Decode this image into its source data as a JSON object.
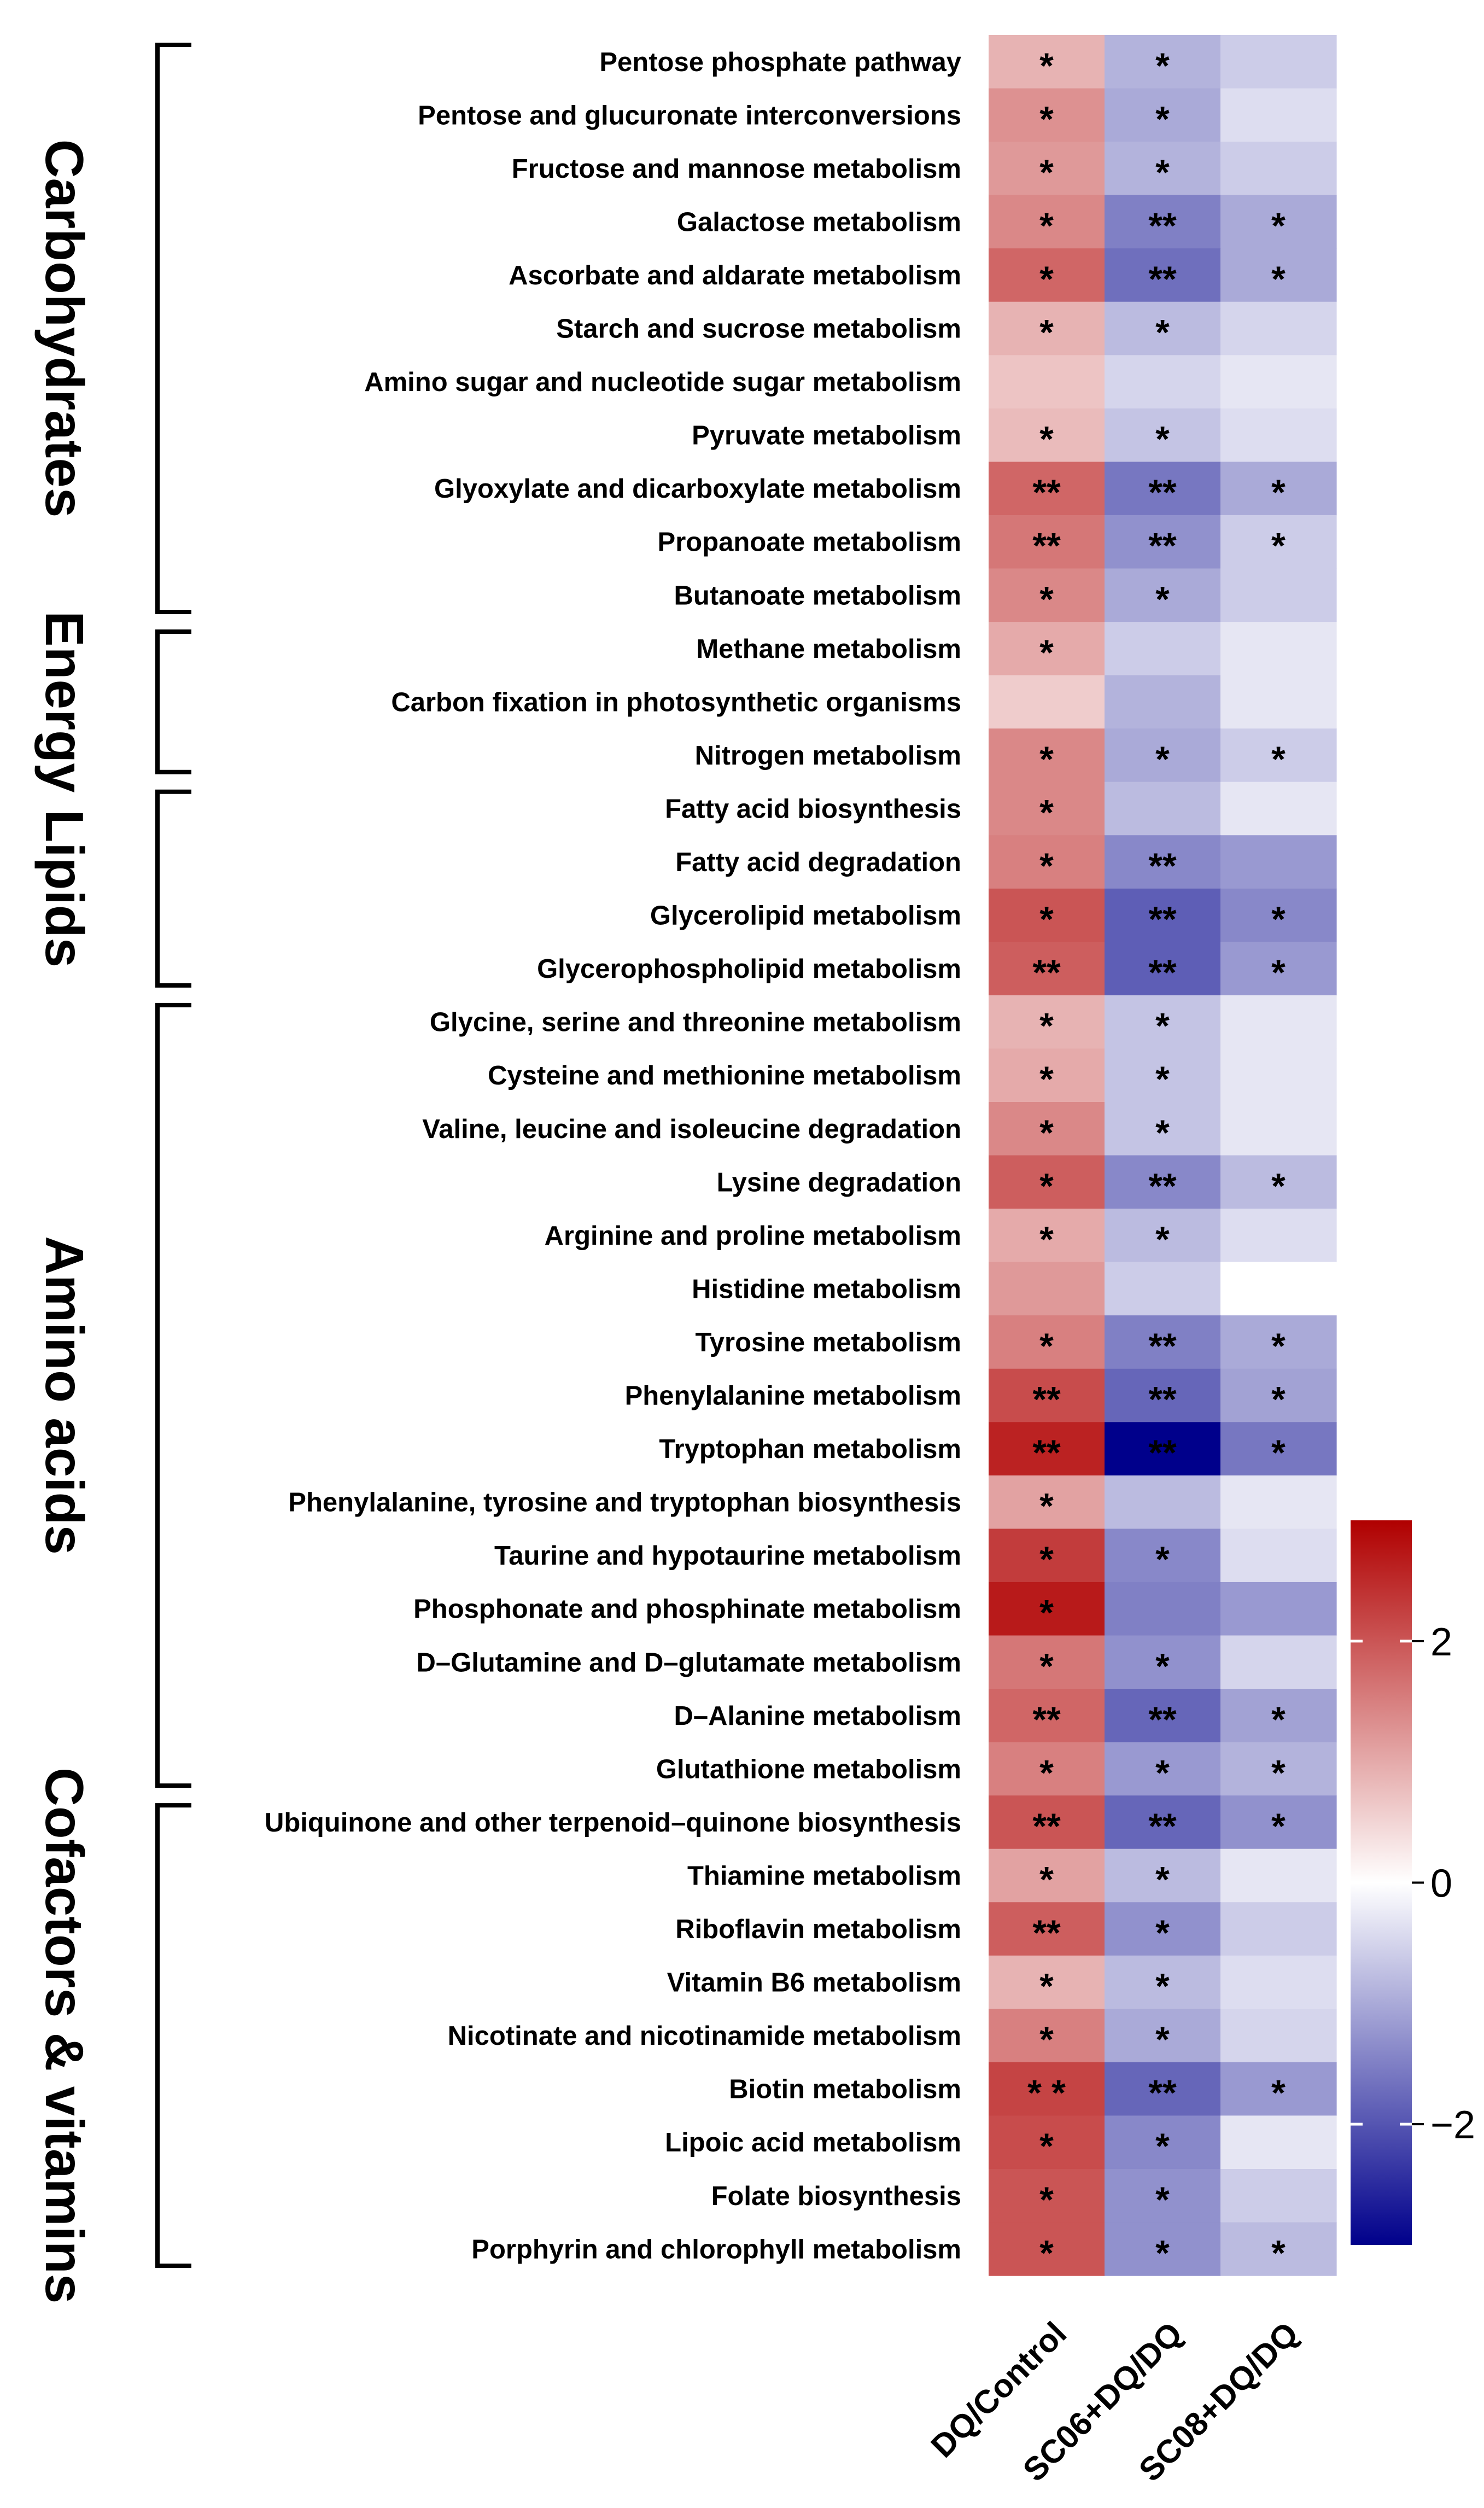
{
  "chart_data": {
    "type": "heatmap",
    "columns": [
      "DQ/Control",
      "SC06+DQ/DQ",
      "SC08+DQ/DQ"
    ],
    "rows": [
      {
        "label": "Pentose phosphate pathway",
        "values": [
          0.9,
          -0.9,
          -0.6
        ],
        "sig": [
          "*",
          "*",
          ""
        ]
      },
      {
        "label": "Pentose and glucuronate interconversions",
        "values": [
          1.3,
          -1.0,
          -0.4
        ],
        "sig": [
          "*",
          "*",
          ""
        ]
      },
      {
        "label": "Fructose and mannose metabolism",
        "values": [
          1.2,
          -0.9,
          -0.6
        ],
        "sig": [
          "*",
          "*",
          ""
        ]
      },
      {
        "label": "Galactose metabolism",
        "values": [
          1.4,
          -1.5,
          -1.0
        ],
        "sig": [
          "*",
          "**",
          "*"
        ]
      },
      {
        "label": "Ascorbate and aldarate metabolism",
        "values": [
          1.8,
          -1.7,
          -1.0
        ],
        "sig": [
          "*",
          "**",
          "*"
        ]
      },
      {
        "label": "Starch and sucrose metabolism",
        "values": [
          0.9,
          -0.8,
          -0.5
        ],
        "sig": [
          "*",
          "*",
          ""
        ]
      },
      {
        "label": "Amino sugar and nucleotide sugar metabolism",
        "values": [
          0.7,
          -0.5,
          -0.3
        ],
        "sig": [
          "",
          "",
          ""
        ]
      },
      {
        "label": "Pyruvate metabolism",
        "values": [
          0.8,
          -0.7,
          -0.4
        ],
        "sig": [
          "*",
          "*",
          ""
        ]
      },
      {
        "label": "Glyoxylate and dicarboxylate metabolism",
        "values": [
          1.8,
          -1.6,
          -1.0
        ],
        "sig": [
          "**",
          "**",
          "*"
        ]
      },
      {
        "label": "Propanoate metabolism",
        "values": [
          1.6,
          -1.3,
          -0.6
        ],
        "sig": [
          "**",
          "**",
          "*"
        ]
      },
      {
        "label": "Butanoate metabolism",
        "values": [
          1.4,
          -1.0,
          -0.6
        ],
        "sig": [
          "*",
          "*",
          ""
        ]
      },
      {
        "label": "Methane metabolism",
        "values": [
          1.0,
          -0.6,
          -0.3
        ],
        "sig": [
          "*",
          "",
          ""
        ]
      },
      {
        "label": "Carbon fixation in photosynthetic organisms",
        "values": [
          0.6,
          -0.9,
          -0.3
        ],
        "sig": [
          "",
          "",
          ""
        ]
      },
      {
        "label": "Nitrogen metabolism",
        "values": [
          1.4,
          -1.0,
          -0.6
        ],
        "sig": [
          "*",
          "*",
          "*"
        ]
      },
      {
        "label": "Fatty acid biosynthesis",
        "values": [
          1.4,
          -0.8,
          -0.3
        ],
        "sig": [
          "*",
          "",
          ""
        ]
      },
      {
        "label": "Fatty acid degradation",
        "values": [
          1.5,
          -1.4,
          -1.2
        ],
        "sig": [
          "*",
          "**",
          ""
        ]
      },
      {
        "label": "Glycerolipid metabolism",
        "values": [
          2.0,
          -1.9,
          -1.4
        ],
        "sig": [
          "*",
          "**",
          "*"
        ]
      },
      {
        "label": "Glycerophospholipid metabolism",
        "values": [
          1.9,
          -1.9,
          -1.2
        ],
        "sig": [
          "**",
          "**",
          "*"
        ]
      },
      {
        "label": "Glycine, serine and threonine metabolism",
        "values": [
          0.9,
          -0.7,
          -0.3
        ],
        "sig": [
          "*",
          "*",
          ""
        ]
      },
      {
        "label": "Cysteine and methionine metabolism",
        "values": [
          1.0,
          -0.7,
          -0.3
        ],
        "sig": [
          "*",
          "*",
          ""
        ]
      },
      {
        "label": "Valine, leucine and isoleucine degradation",
        "values": [
          1.4,
          -0.7,
          -0.3
        ],
        "sig": [
          "*",
          "*",
          ""
        ]
      },
      {
        "label": "Lysine degradation",
        "values": [
          1.9,
          -1.4,
          -0.8
        ],
        "sig": [
          "*",
          "**",
          "*"
        ]
      },
      {
        "label": "Arginine and proline metabolism",
        "values": [
          1.0,
          -0.8,
          -0.4
        ],
        "sig": [
          "*",
          "*",
          ""
        ]
      },
      {
        "label": "Histidine metabolism",
        "values": [
          1.2,
          -0.6,
          0.0
        ],
        "sig": [
          "",
          "",
          ""
        ]
      },
      {
        "label": "Tyrosine metabolism",
        "values": [
          1.5,
          -1.5,
          -1.0
        ],
        "sig": [
          "*",
          "**",
          "*"
        ]
      },
      {
        "label": "Phenylalanine metabolism",
        "values": [
          2.1,
          -1.8,
          -1.1
        ],
        "sig": [
          "**",
          "**",
          "*"
        ]
      },
      {
        "label": "Tryptophan metabolism",
        "values": [
          2.6,
          -3.0,
          -1.6
        ],
        "sig": [
          "**",
          "**",
          "*"
        ]
      },
      {
        "label": "Phenylalanine, tyrosine and tryptophan biosynthesis",
        "values": [
          1.1,
          -0.8,
          -0.3
        ],
        "sig": [
          "*",
          "",
          ""
        ]
      },
      {
        "label": "Taurine and hypotaurine metabolism",
        "values": [
          2.3,
          -1.4,
          -0.4
        ],
        "sig": [
          "*",
          "*",
          ""
        ]
      },
      {
        "label": "Phosphonate and phosphinate metabolism",
        "values": [
          2.7,
          -1.5,
          -1.2
        ],
        "sig": [
          "*",
          "",
          ""
        ]
      },
      {
        "label": "D–Glutamine and D–glutamate metabolism",
        "values": [
          1.6,
          -1.3,
          -0.5
        ],
        "sig": [
          "*",
          "*",
          ""
        ]
      },
      {
        "label": "D–Alanine metabolism",
        "values": [
          1.8,
          -1.8,
          -1.1
        ],
        "sig": [
          "**",
          "**",
          "*"
        ]
      },
      {
        "label": "Glutathione metabolism",
        "values": [
          1.5,
          -1.2,
          -0.9
        ],
        "sig": [
          "*",
          "*",
          "*"
        ]
      },
      {
        "label": "Ubiquinone and other terpenoid–quinone biosynthesis",
        "values": [
          2.0,
          -1.8,
          -1.3
        ],
        "sig": [
          "**",
          "**",
          "*"
        ]
      },
      {
        "label": "Thiamine metabolism",
        "values": [
          1.1,
          -0.8,
          -0.3
        ],
        "sig": [
          "*",
          "*",
          ""
        ]
      },
      {
        "label": "Riboflavin metabolism",
        "values": [
          1.9,
          -1.3,
          -0.6
        ],
        "sig": [
          "**",
          "*",
          ""
        ]
      },
      {
        "label": "Vitamin B6 metabolism",
        "values": [
          0.9,
          -0.8,
          -0.4
        ],
        "sig": [
          "*",
          "*",
          ""
        ]
      },
      {
        "label": "Nicotinate and nicotinamide metabolism",
        "values": [
          1.5,
          -1.0,
          -0.5
        ],
        "sig": [
          "*",
          "*",
          ""
        ]
      },
      {
        "label": "Biotin metabolism",
        "values": [
          2.2,
          -1.8,
          -1.2
        ],
        "sig": [
          "* *",
          "**",
          "*"
        ]
      },
      {
        "label": "Lipoic acid metabolism",
        "values": [
          2.1,
          -1.4,
          -0.3
        ],
        "sig": [
          "*",
          "*",
          ""
        ]
      },
      {
        "label": "Folate biosynthesis",
        "values": [
          2.0,
          -1.3,
          -0.6
        ],
        "sig": [
          "*",
          "*",
          ""
        ]
      },
      {
        "label": "Porphyrin and chlorophyll metabolism",
        "values": [
          2.0,
          -1.3,
          -0.8
        ],
        "sig": [
          "*",
          "*",
          "*"
        ]
      }
    ],
    "categories": [
      {
        "label": "Carbohydrates",
        "row_start": 0,
        "row_end": 10
      },
      {
        "label": "Energy",
        "row_start": 11,
        "row_end": 13
      },
      {
        "label": "Lipids",
        "row_start": 14,
        "row_end": 17
      },
      {
        "label": "Amino acids",
        "row_start": 18,
        "row_end": 32
      },
      {
        "label": "Cofactors & vitamins",
        "row_start": 33,
        "row_end": 41
      }
    ],
    "colorbar": {
      "min": -3,
      "max": 3,
      "ticks": [
        2,
        0,
        -2
      ],
      "tick_labels": [
        "2",
        "0",
        "−2"
      ],
      "low_color": "#00008B",
      "mid_color": "#FFFFFF",
      "high_color": "#B00000"
    }
  }
}
